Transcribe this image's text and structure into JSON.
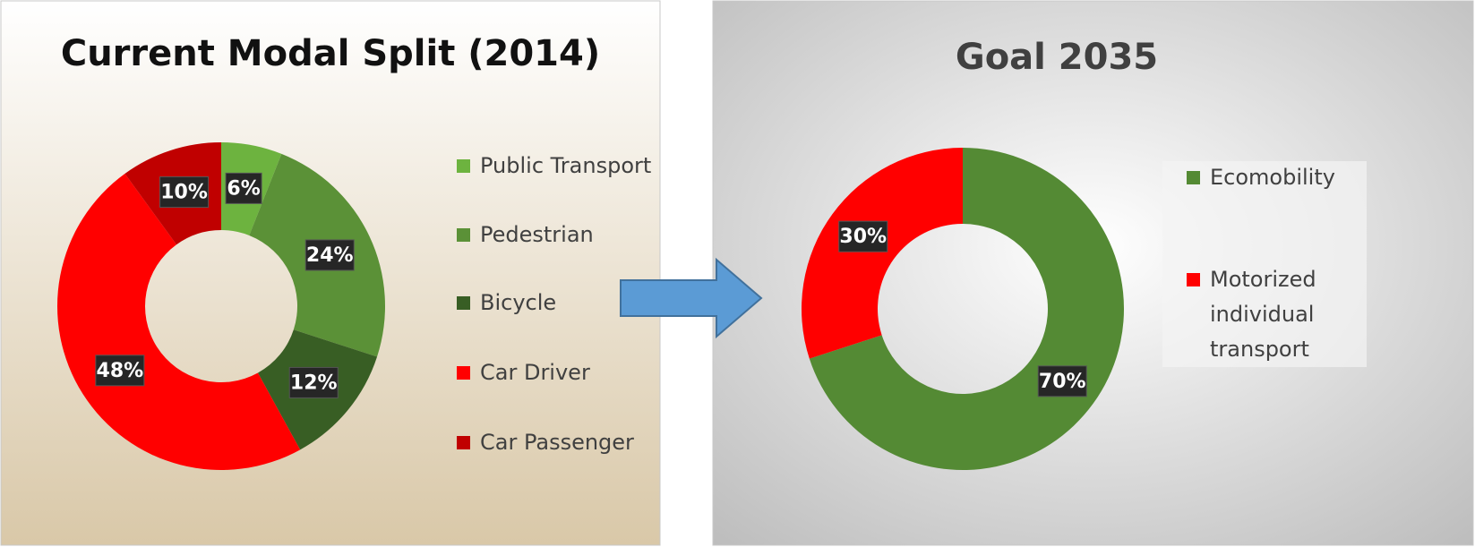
{
  "chart_data": [
    {
      "type": "donut",
      "title": "Current Modal Split (2014)",
      "categories": [
        "Public Transport",
        "Pedestrian",
        "Bicycle",
        "Car Driver",
        "Car Passenger"
      ],
      "values": [
        6,
        24,
        12,
        48,
        10
      ],
      "value_labels": [
        "6%",
        "24%",
        "12%",
        "48%",
        "10%"
      ],
      "colors": [
        "#6db33f",
        "#5b9137",
        "#385e24",
        "#ff0000",
        "#c00000"
      ]
    },
    {
      "type": "donut",
      "title": "Goal 2035",
      "categories": [
        "Ecomobility",
        "Motorized individual transport"
      ],
      "values": [
        70,
        30
      ],
      "value_labels": [
        "70%",
        "30%"
      ],
      "colors": [
        "#548a34",
        "#ff0000"
      ]
    }
  ]
}
